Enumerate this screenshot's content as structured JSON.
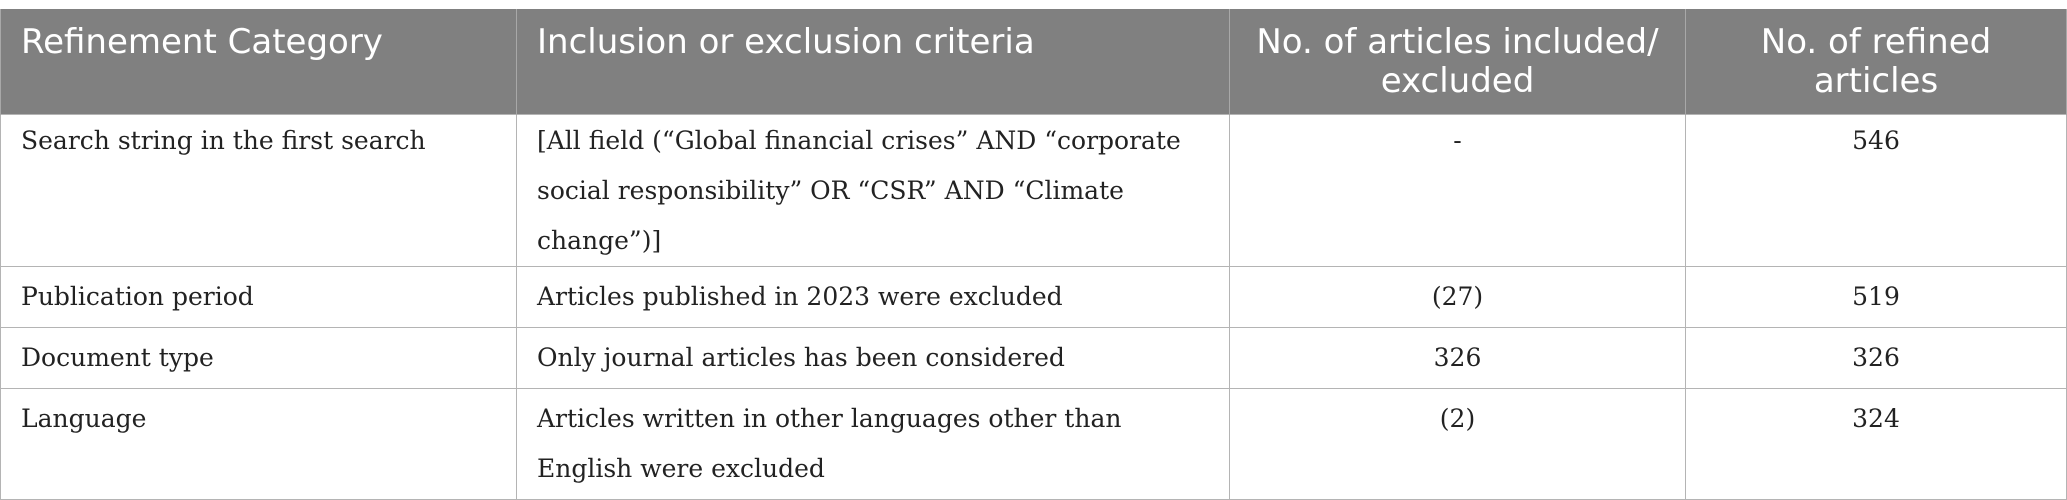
{
  "table": {
    "headers": [
      "Refinement Category",
      "Inclusion or exclusion criteria",
      "No. of articles included/ excluded",
      "No. of refined articles"
    ],
    "rows": [
      {
        "category": "Search string in the first search",
        "criteria": "[All field (“Global financial crises” AND “corporate social responsibility” OR “CSR” AND “Climate change”)]",
        "included_excluded": "-",
        "refined": "546"
      },
      {
        "category": "Publication period",
        "criteria": "Articles published in 2023 were excluded",
        "included_excluded": "(27)",
        "refined": "519"
      },
      {
        "category": "Document type",
        "criteria": "Only journal articles has been considered",
        "included_excluded": "326",
        "refined": "326"
      },
      {
        "category": "Language",
        "criteria": "Articles written in other languages other than English were excluded",
        "included_excluded": "(2)",
        "refined": "324"
      }
    ]
  }
}
